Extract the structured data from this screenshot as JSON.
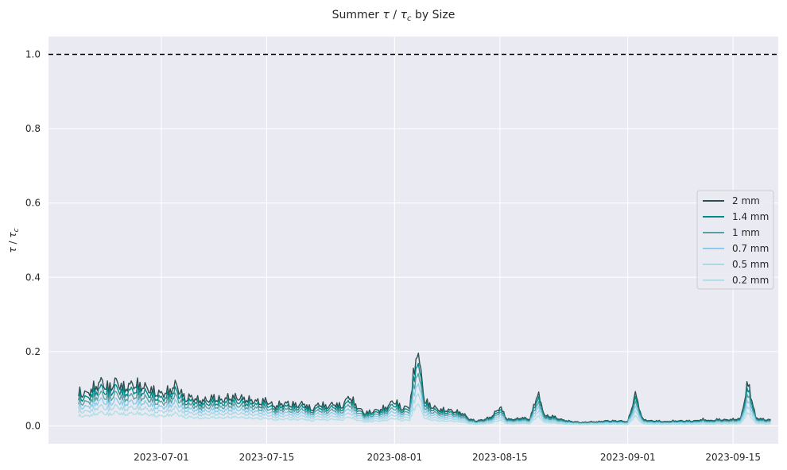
{
  "chart_data": {
    "type": "line",
    "title_prefix": "Summer ",
    "title_tau": "τ",
    "title_sep": " / ",
    "title_tau_c": "τ",
    "title_sub": "c",
    "title_suffix": " by Size",
    "ylabel_tau": "τ",
    "ylabel_sep": " / ",
    "ylabel_tau_c": "τ",
    "ylabel_sub": "c",
    "xlabel": "",
    "x_ticks": [
      "2023-07-01",
      "2023-07-15",
      "2023-08-01",
      "2023-08-15",
      "2023-09-01",
      "2023-09-15"
    ],
    "y_ticks": [
      "0.0",
      "0.2",
      "0.4",
      "0.6",
      "0.8",
      "1.0"
    ],
    "xlim": [
      "2023-06-16",
      "2023-09-21"
    ],
    "ylim": [
      -0.048,
      1.048
    ],
    "grid": true,
    "legend_position": "center-right",
    "threshold_line": {
      "y": 1.0,
      "style": "dashed",
      "color": "#000000"
    },
    "series": [
      {
        "name": "2 mm",
        "color": "#2f4f4f",
        "scale": 1.0
      },
      {
        "name": "1.4 mm",
        "color": "#008b8b",
        "scale": 0.86
      },
      {
        "name": "1 mm",
        "color": "#5f9ea0",
        "scale": 0.72
      },
      {
        "name": "0.7 mm",
        "color": "#87ceeb",
        "scale": 0.58
      },
      {
        "name": "0.5 mm",
        "color": "#add8e6",
        "scale": 0.44
      },
      {
        "name": "0.2 mm",
        "color": "#b0e0e6",
        "scale": 0.3
      }
    ],
    "reference_series": {
      "name": "2 mm",
      "points": [
        [
          "2023-06-20",
          0.11
        ],
        [
          "2023-06-21",
          0.1
        ],
        [
          "2023-06-22",
          0.12
        ],
        [
          "2023-06-23",
          0.14
        ],
        [
          "2023-06-24",
          0.12
        ],
        [
          "2023-06-25",
          0.14
        ],
        [
          "2023-06-26",
          0.12
        ],
        [
          "2023-06-27",
          0.13
        ],
        [
          "2023-06-28",
          0.13
        ],
        [
          "2023-06-29",
          0.12
        ],
        [
          "2023-06-30",
          0.11
        ],
        [
          "2023-07-01",
          0.1
        ],
        [
          "2023-07-02",
          0.11
        ],
        [
          "2023-07-03",
          0.13
        ],
        [
          "2023-07-04",
          0.09
        ],
        [
          "2023-07-05",
          0.09
        ],
        [
          "2023-07-06",
          0.08
        ],
        [
          "2023-07-07",
          0.08
        ],
        [
          "2023-07-08",
          0.09
        ],
        [
          "2023-07-09",
          0.08
        ],
        [
          "2023-07-10",
          0.09
        ],
        [
          "2023-07-11",
          0.09
        ],
        [
          "2023-07-12",
          0.085
        ],
        [
          "2023-07-13",
          0.08
        ],
        [
          "2023-07-14",
          0.075
        ],
        [
          "2023-07-15",
          0.08
        ],
        [
          "2023-07-16",
          0.06
        ],
        [
          "2023-07-17",
          0.07
        ],
        [
          "2023-07-18",
          0.07
        ],
        [
          "2023-07-19",
          0.065
        ],
        [
          "2023-07-20",
          0.07
        ],
        [
          "2023-07-21",
          0.05
        ],
        [
          "2023-07-22",
          0.07
        ],
        [
          "2023-07-23",
          0.06
        ],
        [
          "2023-07-24",
          0.07
        ],
        [
          "2023-07-25",
          0.06
        ],
        [
          "2023-07-26",
          0.095
        ],
        [
          "2023-07-27",
          0.06
        ],
        [
          "2023-07-28",
          0.04
        ],
        [
          "2023-07-29",
          0.045
        ],
        [
          "2023-07-30",
          0.05
        ],
        [
          "2023-07-31",
          0.06
        ],
        [
          "2023-08-01",
          0.08
        ],
        [
          "2023-08-02",
          0.055
        ],
        [
          "2023-08-03",
          0.06
        ],
        [
          "2023-08-04",
          0.25
        ],
        [
          "2023-08-05",
          0.08
        ],
        [
          "2023-08-06",
          0.06
        ],
        [
          "2023-08-07",
          0.05
        ],
        [
          "2023-08-08",
          0.05
        ],
        [
          "2023-08-09",
          0.045
        ],
        [
          "2023-08-10",
          0.04
        ],
        [
          "2023-08-11",
          0.02
        ],
        [
          "2023-08-12",
          0.015
        ],
        [
          "2023-08-13",
          0.02
        ],
        [
          "2023-08-14",
          0.03
        ],
        [
          "2023-08-15",
          0.06
        ],
        [
          "2023-08-16",
          0.02
        ],
        [
          "2023-08-17",
          0.02
        ],
        [
          "2023-08-18",
          0.025
        ],
        [
          "2023-08-19",
          0.02
        ],
        [
          "2023-08-20",
          0.105
        ],
        [
          "2023-08-21",
          0.03
        ],
        [
          "2023-08-22",
          0.03
        ],
        [
          "2023-08-23",
          0.02
        ],
        [
          "2023-08-24",
          0.015
        ],
        [
          "2023-08-25",
          0.012
        ],
        [
          "2023-08-26",
          0.01
        ],
        [
          "2023-08-27",
          0.012
        ],
        [
          "2023-08-28",
          0.012
        ],
        [
          "2023-08-29",
          0.015
        ],
        [
          "2023-08-30",
          0.015
        ],
        [
          "2023-08-31",
          0.015
        ],
        [
          "2023-09-01",
          0.012
        ],
        [
          "2023-09-02",
          0.1
        ],
        [
          "2023-09-03",
          0.02
        ],
        [
          "2023-09-04",
          0.015
        ],
        [
          "2023-09-05",
          0.015
        ],
        [
          "2023-09-06",
          0.012
        ],
        [
          "2023-09-07",
          0.015
        ],
        [
          "2023-09-08",
          0.015
        ],
        [
          "2023-09-09",
          0.015
        ],
        [
          "2023-09-10",
          0.015
        ],
        [
          "2023-09-11",
          0.02
        ],
        [
          "2023-09-12",
          0.015
        ],
        [
          "2023-09-13",
          0.02
        ],
        [
          "2023-09-14",
          0.018
        ],
        [
          "2023-09-15",
          0.02
        ],
        [
          "2023-09-16",
          0.022
        ],
        [
          "2023-09-17",
          0.14
        ],
        [
          "2023-09-18",
          0.025
        ],
        [
          "2023-09-19",
          0.02
        ],
        [
          "2023-09-20",
          0.018
        ]
      ]
    }
  }
}
